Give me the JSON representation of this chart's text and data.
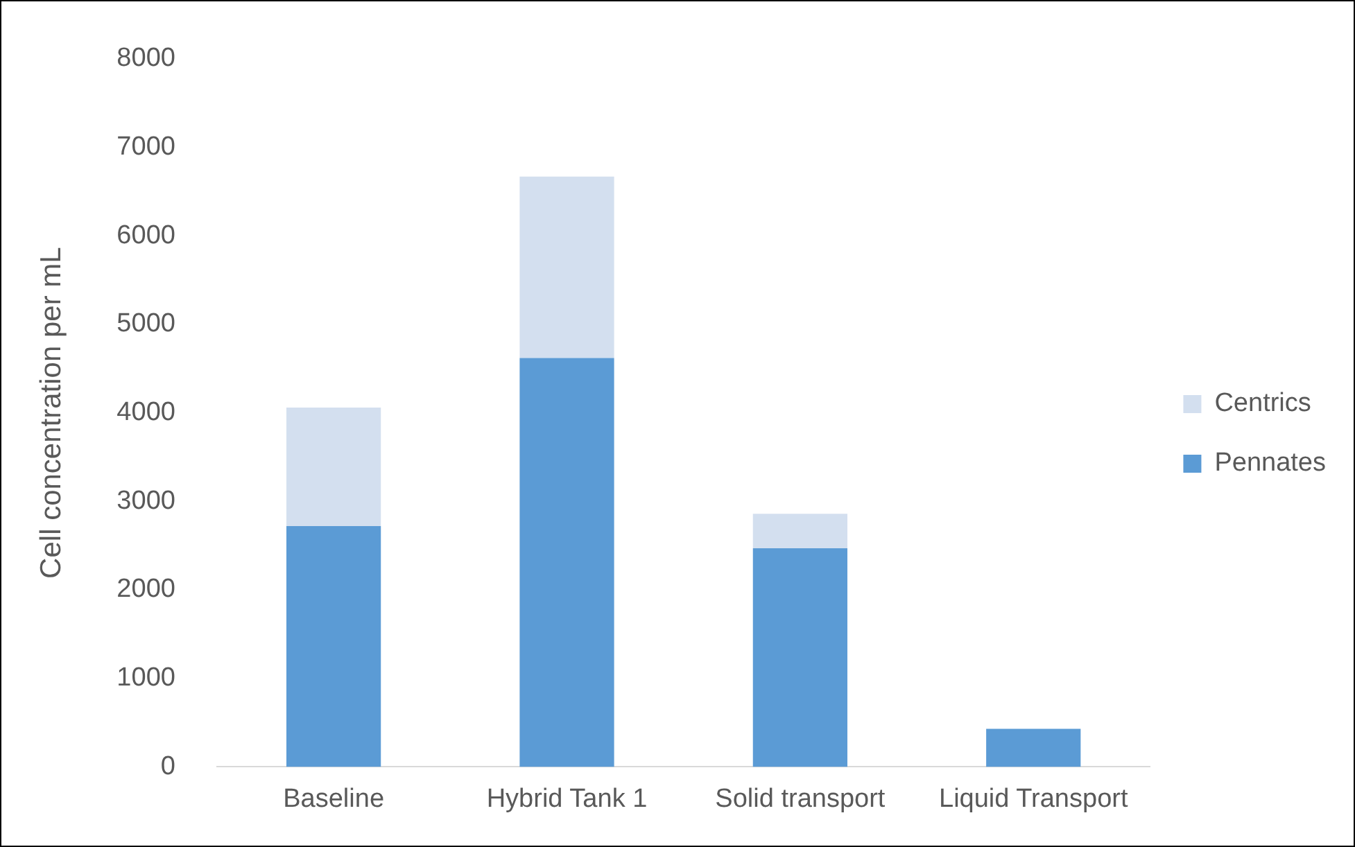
{
  "chart_data": {
    "type": "bar",
    "ylabel": "Cell concentration per mL",
    "categories": [
      "Baseline",
      "Hybrid Tank 1",
      "Solid transport",
      "Liquid Transport"
    ],
    "stacked": true,
    "series": [
      {
        "name": "Pennates",
        "color": "#5b9bd5",
        "values": [
          2720,
          4620,
          2470,
          430
        ]
      },
      {
        "name": "Centrics",
        "color": "#d3dfef",
        "values": [
          1340,
          2050,
          390,
          null
        ]
      }
    ],
    "ylim": [
      0,
      8000
    ],
    "yticks": [
      0,
      1000,
      2000,
      3000,
      4000,
      5000,
      6000,
      7000,
      8000
    ],
    "grid": false,
    "legend": "right"
  }
}
